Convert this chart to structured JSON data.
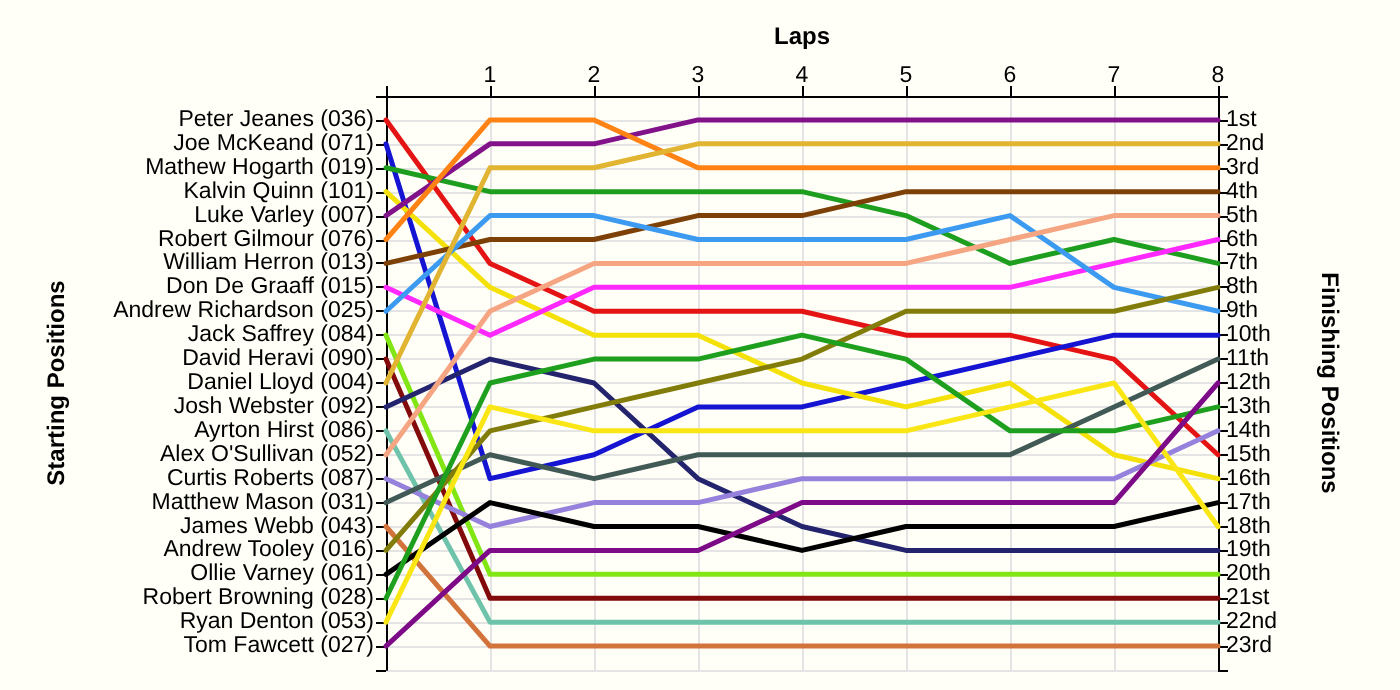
{
  "chart_data": {
    "type": "line",
    "xlabel": "Laps",
    "ylabel": "Finishing Positions",
    "x": [
      0,
      1,
      2,
      3,
      4,
      5,
      6,
      7,
      8
    ],
    "xlim": [
      0,
      8
    ],
    "xticks": [
      {
        "value": 0,
        "label": null
      },
      1,
      2,
      3,
      4,
      5,
      6,
      7,
      8
    ],
    "annotations": [
      "Starting Positions",
      "Peter Jeanes (036)",
      "Joe McKeand (071)",
      "Mathew Hogarth (019)",
      "Kalvin Quinn (101)",
      "Luke Varley (007)",
      "Robert Gilmour (076)",
      "William Herron (013)",
      "Don De Graaff (015)",
      "Andrew Richardson (025)",
      "Jack Saffrey (084)",
      "David Heravi (090)",
      "Daniel Lloyd (004)",
      "Josh Webster (092)",
      "Ayrton Hirst (086)",
      "Alex O'Sullivan (052)",
      "Curtis Roberts (087)",
      "Matthew Mason (031)",
      "James Webb (043)",
      "Andrew Tooley (016)",
      "Ollie Varney (061)",
      "Robert Browning (028)",
      "Ryan Denton (053)",
      "Tom Fawcett (027)"
    ],
    "ylim": [
      24,
      0
    ],
    "yticks": [
      {
        "value": 0,
        "label": null
      },
      {
        "value": 1,
        "label": "1st"
      },
      {
        "value": 2,
        "label": "2nd"
      },
      {
        "value": 3,
        "label": "3rd"
      },
      {
        "value": 4,
        "label": "4th"
      },
      {
        "value": 5,
        "label": "5th"
      },
      {
        "value": 6,
        "label": "6th"
      },
      {
        "value": 7,
        "label": "7th"
      },
      {
        "value": 8,
        "label": "8th"
      },
      {
        "value": 9,
        "label": "9th"
      },
      {
        "value": 10,
        "label": "10th"
      },
      {
        "value": 11,
        "label": "11th"
      },
      {
        "value": 12,
        "label": "12th"
      },
      {
        "value": 13,
        "label": "13th"
      },
      {
        "value": 14,
        "label": "14th"
      },
      {
        "value": 15,
        "label": "15th"
      },
      {
        "value": 16,
        "label": "16th"
      },
      {
        "value": 17,
        "label": "17th"
      },
      {
        "value": 18,
        "label": "18th"
      },
      {
        "value": 19,
        "label": "19th"
      },
      {
        "value": 20,
        "label": "20th"
      },
      {
        "value": 21,
        "label": "21st"
      },
      {
        "value": 22,
        "label": "22nd"
      },
      {
        "value": 23,
        "label": "23rd"
      },
      {
        "value": 24,
        "label": null
      }
    ],
    "grid": true,
    "marker": "none",
    "series": [
      {
        "color": "#e41414",
        "values": [
          1,
          7,
          9,
          9,
          9,
          10,
          10,
          11,
          15
        ]
      },
      {
        "color": "#1414d2",
        "values": [
          2,
          16,
          15,
          13,
          13,
          12,
          11,
          10,
          10
        ]
      },
      {
        "color": "#1e9e1e",
        "values": [
          3,
          4,
          4,
          4,
          4,
          5,
          7,
          6,
          7
        ]
      },
      {
        "color": "#f5e10a",
        "values": [
          4,
          8,
          10,
          10,
          12,
          13,
          12,
          15,
          16
        ]
      },
      {
        "color": "#82128a",
        "values": [
          5,
          2,
          2,
          1,
          1,
          1,
          1,
          1,
          1
        ]
      },
      {
        "color": "#ff8214",
        "values": [
          6,
          1,
          1,
          3,
          3,
          3,
          3,
          3,
          3
        ]
      },
      {
        "color": "#7d4108",
        "values": [
          7,
          6,
          6,
          5,
          5,
          4,
          4,
          4,
          4
        ]
      },
      {
        "color": "#ff28ff",
        "values": [
          8,
          10,
          8,
          8,
          8,
          8,
          8,
          7,
          6
        ]
      },
      {
        "color": "#3c9bf0",
        "values": [
          9,
          5,
          5,
          6,
          6,
          6,
          5,
          8,
          9
        ]
      },
      {
        "color": "#82e614",
        "values": [
          10,
          20,
          20,
          20,
          20,
          20,
          20,
          20,
          20
        ]
      },
      {
        "color": "#820a0a",
        "values": [
          11,
          21,
          21,
          21,
          21,
          21,
          21,
          21,
          21
        ]
      },
      {
        "color": "#e1b432",
        "values": [
          12,
          3,
          3,
          2,
          2,
          2,
          2,
          2,
          2
        ]
      },
      {
        "color": "#23236e",
        "values": [
          13,
          11,
          12,
          16,
          18,
          19,
          19,
          19,
          19
        ]
      },
      {
        "color": "#6ec3aa",
        "values": [
          14,
          22,
          22,
          22,
          22,
          22,
          22,
          22,
          22
        ]
      },
      {
        "color": "#f5a582",
        "values": [
          15,
          9,
          7,
          7,
          7,
          7,
          6,
          5,
          5
        ]
      },
      {
        "color": "#9682dc",
        "values": [
          16,
          18,
          17,
          17,
          16,
          16,
          16,
          16,
          14
        ]
      },
      {
        "color": "#415a55",
        "values": [
          17,
          15,
          16,
          15,
          15,
          15,
          15,
          13,
          11
        ]
      },
      {
        "color": "#d2733c",
        "values": [
          18,
          23,
          23,
          23,
          23,
          23,
          23,
          23,
          23
        ]
      },
      {
        "color": "#827d0a",
        "values": [
          19,
          14,
          13,
          12,
          11,
          9,
          9,
          9,
          8
        ]
      },
      {
        "color": "#000000",
        "values": [
          20,
          17,
          18,
          18,
          19,
          18,
          18,
          18,
          17
        ]
      },
      {
        "color": "#1ea01e",
        "values": [
          21,
          12,
          11,
          11,
          10,
          11,
          14,
          14,
          13
        ]
      },
      {
        "color": "#fae614",
        "values": [
          22,
          13,
          14,
          14,
          14,
          14,
          13,
          12,
          18
        ]
      },
      {
        "color": "#7d0a87",
        "values": [
          23,
          19,
          19,
          19,
          17,
          17,
          17,
          17,
          12
        ]
      }
    ]
  }
}
